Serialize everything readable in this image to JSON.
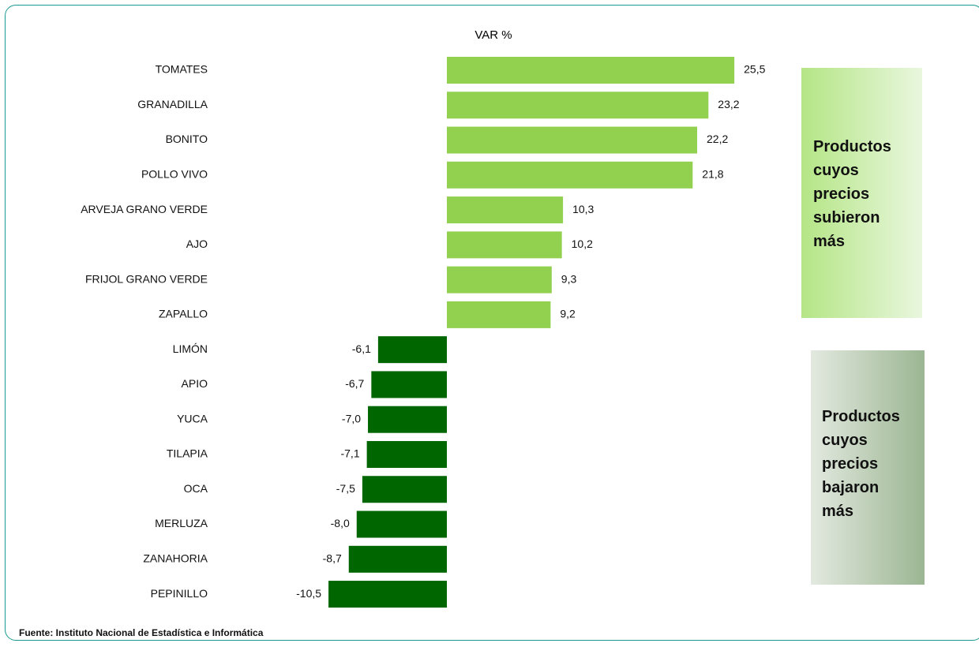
{
  "chart_data": {
    "type": "bar",
    "orientation": "horizontal",
    "title": "VAR %",
    "categories": [
      "TOMATES",
      "GRANADILLA",
      "BONITO",
      "POLLO VIVO",
      "ARVEJA GRANO VERDE",
      "AJO",
      "FRIJOL GRANO VERDE",
      "ZAPALLO",
      "LIMÓN",
      "APIO",
      "YUCA",
      "TILAPIA",
      "OCA",
      "MERLUZA",
      "ZANAHORIA",
      "PEPINILLO"
    ],
    "values": [
      25.5,
      23.2,
      22.2,
      21.8,
      10.3,
      10.2,
      9.3,
      9.2,
      -6.1,
      -6.7,
      -7.0,
      -7.1,
      -7.5,
      -8.0,
      -8.7,
      -10.5
    ],
    "value_labels": [
      "25,5",
      "23,2",
      "22,2",
      "21,8",
      "10,3",
      "10,2",
      "9,3",
      "9,2",
      "-6,1",
      "-6,7",
      "-7,0",
      "-7,1",
      "-7,5",
      "-8,0",
      "-8,7",
      "-10,5"
    ],
    "positive_color": "#92d050",
    "negative_color": "#006600",
    "annotations": [
      "Productos cuyos precios subieron más",
      "Productos cuyos precios bajaron más"
    ],
    "source": "Fuente: Instituto Nacional de Estadística e Informática"
  }
}
